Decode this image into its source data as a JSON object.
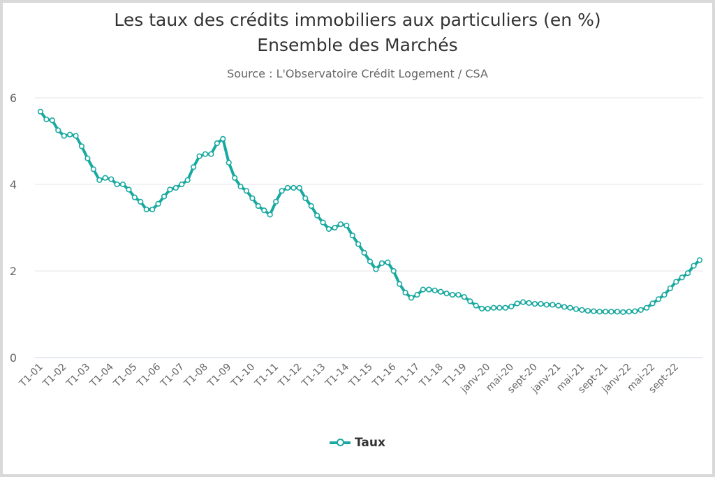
{
  "chart_data": {
    "type": "line",
    "title": "Les taux des crédits immobiliers aux particuliers (en %)",
    "subtitle": "Ensemble des Marchés",
    "source": "Source : L'Observatoire Crédit Logement / CSA",
    "xlabel": "",
    "ylabel": "",
    "ylim": [
      0,
      6
    ],
    "y_ticks": [
      0,
      2,
      4,
      6
    ],
    "grid": true,
    "legend": "bottom",
    "x_tick_labels": [
      "T1-01",
      "T1-02",
      "T1-03",
      "T1-04",
      "T1-05",
      "T1-06",
      "T1-07",
      "T1-08",
      "T1-09",
      "T1-10",
      "T1-11",
      "T1-12",
      "T1-13",
      "T1-14",
      "T1-15",
      "T1-16",
      "T1-17",
      "T1-18",
      "T1-19",
      "janv-20",
      "mai-20",
      "sept-20",
      "janv-21",
      "mai-21",
      "sept-21",
      "janv-22",
      "mai-22",
      "sept-22"
    ],
    "series": [
      {
        "name": "Taux",
        "color": "#1aa9a0",
        "values": [
          5.68,
          5.5,
          5.48,
          5.25,
          5.12,
          5.15,
          5.12,
          4.88,
          4.6,
          4.35,
          4.1,
          4.15,
          4.12,
          4.0,
          4.0,
          3.88,
          3.7,
          3.6,
          3.42,
          3.42,
          3.55,
          3.72,
          3.88,
          3.92,
          4.0,
          4.1,
          4.4,
          4.65,
          4.7,
          4.7,
          4.95,
          5.05,
          4.5,
          4.15,
          3.95,
          3.85,
          3.68,
          3.5,
          3.4,
          3.3,
          3.6,
          3.85,
          3.92,
          3.92,
          3.92,
          3.68,
          3.5,
          3.28,
          3.12,
          2.97,
          3.0,
          3.08,
          3.05,
          2.82,
          2.62,
          2.42,
          2.22,
          2.04,
          2.18,
          2.2,
          2.0,
          1.7,
          1.5,
          1.38,
          1.45,
          1.57,
          1.57,
          1.55,
          1.52,
          1.48,
          1.45,
          1.45,
          1.4,
          1.3,
          1.2,
          1.13,
          1.13,
          1.15,
          1.15,
          1.15,
          1.18,
          1.25,
          1.28,
          1.26,
          1.24,
          1.24,
          1.22,
          1.22,
          1.2,
          1.17,
          1.15,
          1.12,
          1.1,
          1.08,
          1.07,
          1.06,
          1.06,
          1.06,
          1.06,
          1.05,
          1.06,
          1.07,
          1.1,
          1.15,
          1.25,
          1.35,
          1.45,
          1.6,
          1.75,
          1.85,
          1.95,
          2.12,
          2.25
        ]
      }
    ]
  }
}
